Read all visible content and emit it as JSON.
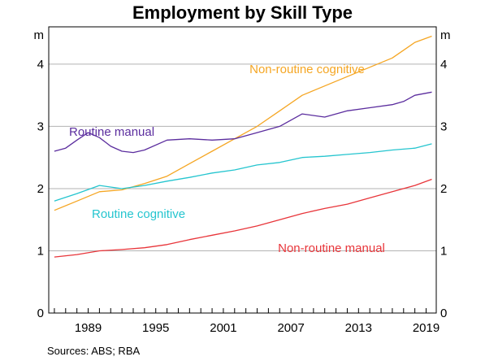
{
  "chart_data": {
    "type": "line",
    "title": "Employment by Skill Type",
    "source": "Sources:   ABS; RBA",
    "ylabel": "m",
    "ylabel_right": "m",
    "ylim": [
      0,
      4.6
    ],
    "yticks": [
      0,
      1,
      2,
      3,
      4
    ],
    "xlim": [
      1985.5,
      2019.9
    ],
    "xticks": [
      1989,
      1995,
      2001,
      2007,
      2013,
      2019
    ],
    "grid": true,
    "series": [
      {
        "name": "Non-routine cognitive",
        "color": "#f5a623",
        "x": [
          1986,
          1988,
          1990,
          1992,
          1994,
          1996,
          1998,
          2000,
          2002,
          2004,
          2006,
          2008,
          2010,
          2012,
          2014,
          2016,
          2018,
          2019.5
        ],
        "values": [
          1.65,
          1.8,
          1.95,
          1.98,
          2.08,
          2.2,
          2.4,
          2.6,
          2.8,
          3.0,
          3.25,
          3.5,
          3.65,
          3.8,
          3.95,
          4.1,
          4.35,
          4.45
        ]
      },
      {
        "name": "Routine manual",
        "color": "#5b2d9e",
        "x": [
          1986,
          1987,
          1988,
          1989,
          1990,
          1991,
          1992,
          1993,
          1994,
          1996,
          1998,
          2000,
          2002,
          2004,
          2006,
          2008,
          2010,
          2012,
          2014,
          2016,
          2017,
          2018,
          2019.5
        ],
        "values": [
          2.6,
          2.65,
          2.78,
          2.9,
          2.82,
          2.68,
          2.6,
          2.58,
          2.62,
          2.78,
          2.8,
          2.78,
          2.8,
          2.9,
          3.0,
          3.2,
          3.15,
          3.25,
          3.3,
          3.35,
          3.4,
          3.5,
          3.55
        ]
      },
      {
        "name": "Routine cognitive",
        "color": "#25c5cf",
        "x": [
          1986,
          1988,
          1990,
          1992,
          1994,
          1996,
          1998,
          2000,
          2002,
          2004,
          2006,
          2008,
          2010,
          2012,
          2014,
          2016,
          2018,
          2019.5
        ],
        "values": [
          1.8,
          1.92,
          2.05,
          2.0,
          2.05,
          2.12,
          2.18,
          2.25,
          2.3,
          2.38,
          2.42,
          2.5,
          2.52,
          2.55,
          2.58,
          2.62,
          2.65,
          2.72
        ]
      },
      {
        "name": "Non-routine manual",
        "color": "#e8353a",
        "x": [
          1986,
          1988,
          1990,
          1992,
          1994,
          1996,
          1998,
          2000,
          2002,
          2004,
          2006,
          2008,
          2010,
          2012,
          2014,
          2016,
          2018,
          2019.5
        ],
        "values": [
          0.9,
          0.94,
          1.0,
          1.02,
          1.05,
          1.1,
          1.18,
          1.25,
          1.32,
          1.4,
          1.5,
          1.6,
          1.68,
          1.75,
          1.85,
          1.95,
          2.05,
          2.15
        ]
      }
    ]
  }
}
